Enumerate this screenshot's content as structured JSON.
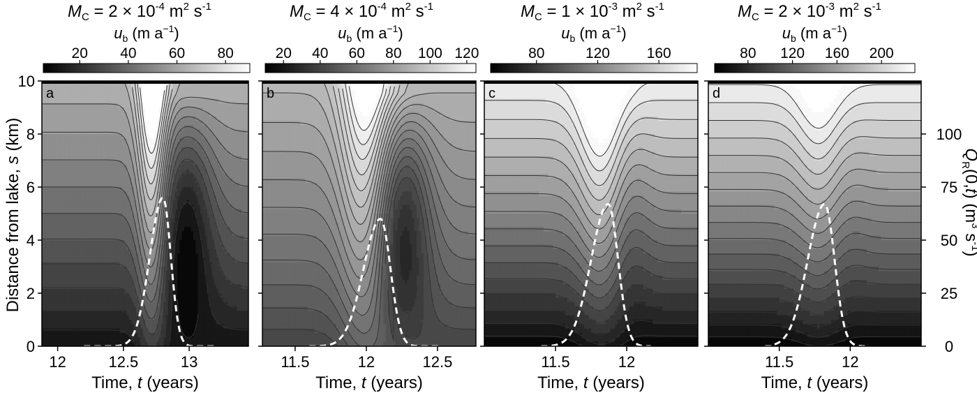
{
  "figure": {
    "ylabel": "Distance from lake, ",
    "ylabel_symbol": "s",
    "ylabel_unit": " (km)",
    "right_ylabel": "Q",
    "right_ylabel_sub": "R",
    "right_ylabel_arg": "(0,",
    "right_ylabel_t": "t",
    "right_ylabel_close": ")",
    "right_ylabel_unit": " (m",
    "right_ylabel_unit_sup": "3",
    "right_ylabel_unit_tail": " s",
    "right_ylabel_unit_sup2": "-1",
    "right_ylabel_unit_end": ")",
    "xlabel": "Time, ",
    "xlabel_symbol": "t",
    "xlabel_unit": " (years)",
    "colorbar_symbol": "u",
    "colorbar_sub": "b",
    "colorbar_unit": " (m a",
    "colorbar_unit_sup": "−1",
    "colorbar_unit_end": ")",
    "m_symbol": "M",
    "m_sub": "C"
  },
  "chart_data": [
    {
      "type": "heatmap",
      "panel_label": "a",
      "mc_text": " = 2 × 10",
      "mc_exp": "-4",
      "mc_unit": " m",
      "mc_unit_sup": "2",
      "mc_unit_tail": " s",
      "mc_unit_sup2": "-1",
      "xlim": [
        11.88,
        13.45
      ],
      "x_ticks": [
        12,
        12.5,
        13
      ],
      "x_tick_labels": [
        "12",
        "12.5",
        "13"
      ],
      "ylim": [
        0,
        10
      ],
      "y_ticks": [
        0,
        2,
        4,
        6,
        8,
        10
      ],
      "y_tick_labels": [
        "0",
        "2",
        "4",
        "6",
        "8",
        "10"
      ],
      "colorbar_range": [
        5,
        90
      ],
      "colorbar_ticks": [
        20,
        40,
        60,
        80
      ],
      "colorbar_tick_labels": [
        "20",
        "40",
        "60",
        "80"
      ],
      "pulse": {
        "t0": 12.25,
        "t_peak": 12.8,
        "t_end": 13.15,
        "peak_q": 70,
        "rise_width": 0.1,
        "fall_width": 0.06
      },
      "field": {
        "base_low": 10,
        "base_high": 64,
        "bump_time": 12.72,
        "bump_width": 0.08,
        "bump_strength": 45,
        "trough_time": 12.98,
        "trough_width": 0.14,
        "trough_strength": 28
      },
      "contour_step": 5
    },
    {
      "type": "heatmap",
      "panel_label": "b",
      "mc_text": " = 4 × 10",
      "mc_exp": "-4",
      "mc_unit": " m",
      "mc_unit_sup": "2",
      "mc_unit_tail": " s",
      "mc_unit_sup2": "-1",
      "xlim": [
        11.27,
        12.77
      ],
      "x_ticks": [
        11.5,
        12,
        12.5
      ],
      "x_tick_labels": [
        "11.5",
        "12",
        "12.5"
      ],
      "ylim": [
        0,
        10
      ],
      "y_ticks": [
        0,
        2,
        4,
        6,
        8,
        10
      ],
      "y_tick_labels": [
        "",
        "",
        "",
        "",
        "",
        ""
      ],
      "colorbar_range": [
        10,
        125
      ],
      "colorbar_ticks": [
        20,
        40,
        60,
        80,
        100,
        120
      ],
      "colorbar_tick_labels": [
        "20",
        "40",
        "60",
        "80",
        "100",
        "120"
      ],
      "pulse": {
        "t0": 11.65,
        "t_peak": 12.1,
        "t_end": 12.48,
        "peak_q": 60,
        "rise_width": 0.12,
        "fall_width": 0.07
      },
      "field": {
        "base_low": 40,
        "base_high": 92,
        "bump_time": 12.0,
        "bump_width": 0.13,
        "bump_strength": 45,
        "trough_time": 12.25,
        "trough_width": 0.14,
        "trough_strength": 40
      },
      "contour_step": 5
    },
    {
      "type": "heatmap",
      "panel_label": "c",
      "mc_text": " = 1 × 10",
      "mc_exp": "-3",
      "mc_unit": " m",
      "mc_unit_sup": "2",
      "mc_unit_tail": " s",
      "mc_unit_sup2": "-1",
      "xlim": [
        11.0,
        12.5
      ],
      "x_ticks": [
        11.5,
        12
      ],
      "x_tick_labels": [
        "11.5",
        "12"
      ],
      "ylim": [
        0,
        10
      ],
      "y_ticks": [
        0,
        2,
        4,
        6,
        8,
        10
      ],
      "y_tick_labels": [
        "",
        "",
        "",
        "",
        "",
        ""
      ],
      "colorbar_range": [
        50,
        185
      ],
      "colorbar_ticks": [
        80,
        120,
        160
      ],
      "colorbar_tick_labels": [
        "80",
        "120",
        "160"
      ],
      "pulse": {
        "t0": 11.45,
        "t_peak": 11.87,
        "t_end": 12.12,
        "peak_q": 67,
        "rise_width": 0.12,
        "fall_width": 0.07
      },
      "field": {
        "base_low": 50,
        "base_high": 178,
        "bump_time": 11.82,
        "bump_width": 0.12,
        "bump_strength": 40,
        "trough_time": 12.02,
        "trough_width": 0.1,
        "trough_strength": 12
      },
      "contour_step": 8
    },
    {
      "type": "heatmap",
      "panel_label": "d",
      "mc_text": " = 2 × 10",
      "mc_exp": "-3",
      "mc_unit": " m",
      "mc_unit_sup": "2",
      "mc_unit_tail": " s",
      "mc_unit_sup2": "-1",
      "xlim": [
        11.0,
        12.5
      ],
      "x_ticks": [
        11.5,
        12
      ],
      "x_tick_labels": [
        "11.5",
        "12"
      ],
      "ylim": [
        0,
        10
      ],
      "y_ticks": [
        0,
        2,
        4,
        6,
        8,
        10
      ],
      "y_tick_labels": [
        "",
        "",
        "",
        "",
        "",
        ""
      ],
      "colorbar_range": [
        50,
        230
      ],
      "colorbar_ticks": [
        80,
        120,
        160,
        200
      ],
      "colorbar_tick_labels": [
        "80",
        "120",
        "160",
        "200"
      ],
      "pulse": {
        "t0": 11.45,
        "t_peak": 11.82,
        "t_end": 12.08,
        "peak_q": 67,
        "rise_width": 0.12,
        "fall_width": 0.07
      },
      "field": {
        "base_low": 50,
        "base_high": 222,
        "bump_time": 11.78,
        "bump_width": 0.12,
        "bump_strength": 28,
        "trough_time": 11.98,
        "trough_width": 0.1,
        "trough_strength": 6
      },
      "contour_step": 10
    }
  ],
  "right_axis": {
    "range": [
      0,
      125
    ],
    "ticks": [
      0,
      25,
      50,
      75,
      100
    ],
    "tick_labels": [
      "0",
      "25",
      "50",
      "75",
      "100"
    ]
  },
  "colors": {
    "pulse_line": "#ffffff",
    "contour_line": "#333333",
    "axis": "#000000"
  }
}
